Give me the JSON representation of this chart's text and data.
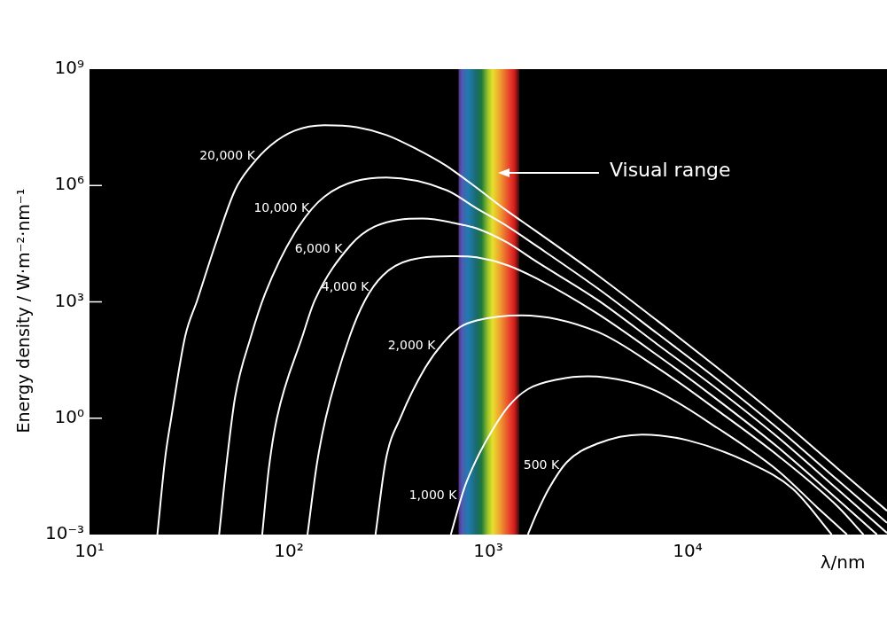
{
  "chart_data": {
    "type": "line",
    "xlabel": "λ/nm",
    "ylabel": "Energy density / W·m⁻²·nm⁻¹",
    "log": "xy",
    "grid": false,
    "xlim": [
      10,
      100000
    ],
    "xticks": [
      {
        "value": 10,
        "label": "10¹"
      },
      {
        "value": 100,
        "label": "10²"
      },
      {
        "value": 1000,
        "label": "10³"
      },
      {
        "value": 10000,
        "label": "10⁴"
      }
    ],
    "ylim": [
      0.001,
      1000000000
    ],
    "yticks": [
      {
        "value": 0.001,
        "label": "10⁻³"
      },
      {
        "value": 1,
        "label": "10⁰"
      },
      {
        "value": 1000,
        "label": "10³"
      },
      {
        "value": 1000000,
        "label": "10⁶"
      },
      {
        "value": 1000000000,
        "label": "10⁹"
      }
    ],
    "bands": [
      {
        "axis": "x",
        "from": 710,
        "to": 1430,
        "label": "Visual range"
      }
    ],
    "series": [
      {
        "name": "20,000 K",
        "color": "#ffffff",
        "x": [
          21.9,
          24,
          25.7,
          30.2,
          34.7,
          42.7,
          53.7,
          64.6,
          81.3,
          107,
          151,
          219,
          309,
          437,
          617,
          871,
          1230,
          1740,
          3550,
          7080,
          14100,
          28200,
          56200,
          100000
        ],
        "values": [
          0.001,
          0.1,
          1,
          130,
          1100,
          29000,
          760000,
          3200000,
          11000000,
          26000000,
          36000000,
          32000000,
          20000000,
          8700000,
          3200000,
          890000,
          230000,
          66000,
          4800,
          320,
          20,
          1.1,
          0.052,
          0.0041
        ]
      },
      {
        "name": "10,000 K",
        "color": "#ffffff",
        "x": [
          44.7,
          49,
          53.7,
          64.6,
          75.9,
          107,
          151,
          309,
          617,
          871,
          1230,
          1740,
          3550,
          7080,
          14100,
          28200,
          56200,
          100000
        ],
        "values": [
          0.001,
          0.089,
          3.4,
          130,
          1600,
          60000,
          520000,
          1600000,
          760000,
          260000,
          93000,
          28000,
          2200,
          150,
          10,
          0.56,
          0.026,
          0.002
        ]
      },
      {
        "name": "6,000 K",
        "color": "#ffffff",
        "x": [
          73.5,
          79.4,
          87.1,
          117,
          135,
          204,
          269,
          468,
          724,
          871,
          1230,
          1740,
          3550,
          7080,
          14100,
          28200,
          56200,
          100000
        ],
        "values": [
          0.001,
          0.052,
          1,
          130,
          1100,
          29000,
          87000,
          140000,
          100000,
          79000,
          35000,
          11000,
          1100,
          79,
          5.6,
          0.33,
          0.015,
          0.0011
        ]
      },
      {
        "name": "4,000 K",
        "color": "#ffffff",
        "x": [
          124,
          138,
          153,
          202,
          241,
          296,
          406,
          682,
          875,
          1240,
          1750,
          3520,
          7050,
          14100,
          28300,
          56800,
          89100
        ],
        "values": [
          0.001,
          0.063,
          1,
          130,
          1100,
          4800,
          12000,
          15000,
          14000,
          8900,
          4000,
          500,
          42,
          3,
          0.18,
          0.0079,
          0.001
        ]
      },
      {
        "name": "2,000 K",
        "color": "#ffffff",
        "x": [
          272,
          307,
          365,
          483,
          594,
          719,
          875,
          1470,
          3520,
          7050,
          14100,
          28300,
          56800,
          76200
        ],
        "values": [
          0.001,
          0.089,
          1.1,
          20,
          87,
          220,
          330,
          450,
          170,
          20,
          1.6,
          0.11,
          0.0052,
          0.001
        ]
      },
      {
        "name": "1,000 K",
        "color": "#ffffff",
        "x": [
          649,
          759,
          875,
          1050,
          1260,
          1580,
          2240,
          3160,
          5010,
          7050,
          14100,
          28300,
          44700,
          63000
        ],
        "values": [
          0.001,
          0.016,
          0.089,
          0.5,
          2,
          5.6,
          10,
          12,
          8.9,
          4.9,
          0.56,
          0.045,
          0.005,
          0.001
        ]
      },
      {
        "name": "500 K",
        "color": "#ffffff",
        "x": [
          1580,
          1750,
          2010,
          2480,
          3520,
          5920,
          10000,
          20000,
          33700,
          52800
        ],
        "values": [
          0.001,
          0.0035,
          0.015,
          0.074,
          0.22,
          0.38,
          0.27,
          0.074,
          0.015,
          0.001
        ]
      }
    ]
  }
}
